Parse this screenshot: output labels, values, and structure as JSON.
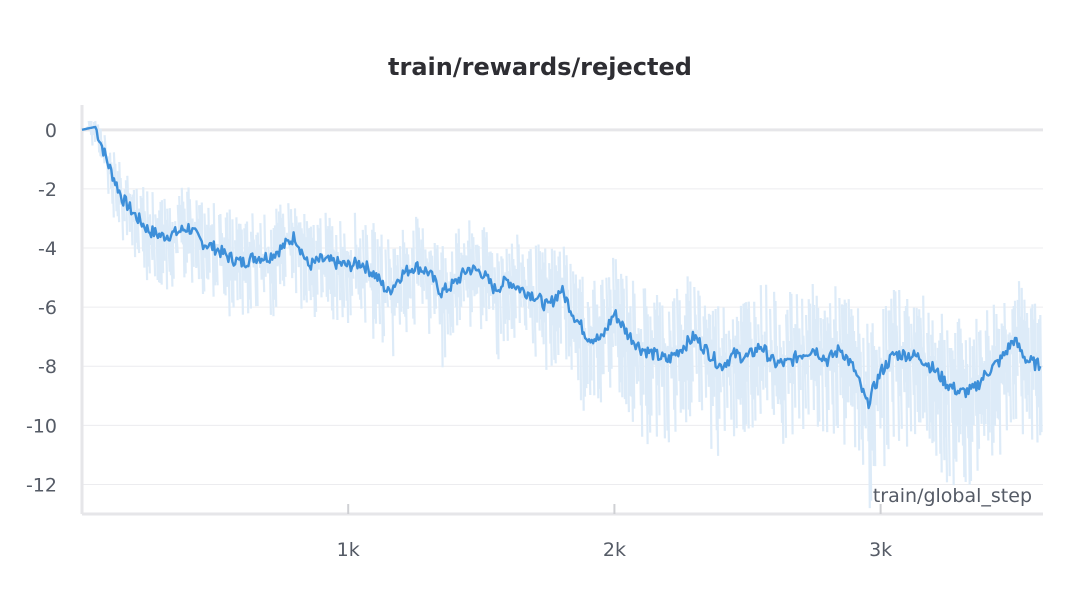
{
  "chart_data": {
    "type": "line",
    "title": "train/rewards/rejected",
    "xlabel": "train/global_step",
    "ylabel": "",
    "xlim": [
      0,
      3610
    ],
    "ylim": [
      -13,
      0.4
    ],
    "x_ticks": [
      1000,
      2000,
      3000
    ],
    "x_tick_labels": [
      "1k",
      "2k",
      "3k"
    ],
    "y_ticks": [
      0,
      -2,
      -4,
      -6,
      -8,
      -10,
      -12
    ],
    "y_tick_labels": [
      "0",
      "-2",
      "-4",
      "-6",
      "-8",
      "-10",
      "-12"
    ],
    "grid": true,
    "legend": "none",
    "colors": {
      "smoothed": "#3d8fd9",
      "raw": "#ddebf8",
      "axis": "#e6e6e9",
      "text": "#555b66"
    },
    "series": [
      {
        "role": "smoothed",
        "x": [
          0,
          50,
          100,
          150,
          200,
          250,
          300,
          350,
          400,
          450,
          500,
          550,
          600,
          650,
          700,
          750,
          800,
          850,
          900,
          950,
          1000,
          1050,
          1100,
          1150,
          1200,
          1250,
          1300,
          1350,
          1400,
          1450,
          1500,
          1550,
          1600,
          1650,
          1700,
          1750,
          1800,
          1850,
          1900,
          1950,
          2000,
          2050,
          2100,
          2150,
          2200,
          2250,
          2300,
          2350,
          2400,
          2450,
          2500,
          2550,
          2600,
          2650,
          2700,
          2750,
          2800,
          2850,
          2900,
          2950,
          3000,
          3050,
          3100,
          3150,
          3200,
          3250,
          3300,
          3350,
          3400,
          3450,
          3500,
          3550,
          3600
        ],
        "values": [
          0.0,
          0.1,
          -1.2,
          -2.3,
          -2.9,
          -3.4,
          -3.6,
          -3.5,
          -3.3,
          -3.8,
          -4.0,
          -4.3,
          -4.5,
          -4.3,
          -4.3,
          -4.0,
          -3.6,
          -4.6,
          -4.4,
          -4.5,
          -4.6,
          -4.5,
          -4.9,
          -5.5,
          -4.9,
          -4.6,
          -4.8,
          -5.5,
          -5.2,
          -4.7,
          -4.8,
          -5.4,
          -5.1,
          -5.4,
          -5.6,
          -6.0,
          -5.4,
          -6.3,
          -7.0,
          -7.1,
          -6.2,
          -6.9,
          -7.4,
          -7.6,
          -7.8,
          -7.4,
          -7.0,
          -7.5,
          -8.0,
          -7.6,
          -7.7,
          -7.3,
          -7.9,
          -7.9,
          -7.6,
          -7.4,
          -7.8,
          -7.4,
          -8.1,
          -9.3,
          -8.2,
          -7.6,
          -7.6,
          -7.7,
          -8.1,
          -8.6,
          -8.9,
          -8.8,
          -8.2,
          -7.8,
          -7.1,
          -7.8,
          -8.0
        ]
      }
    ]
  }
}
